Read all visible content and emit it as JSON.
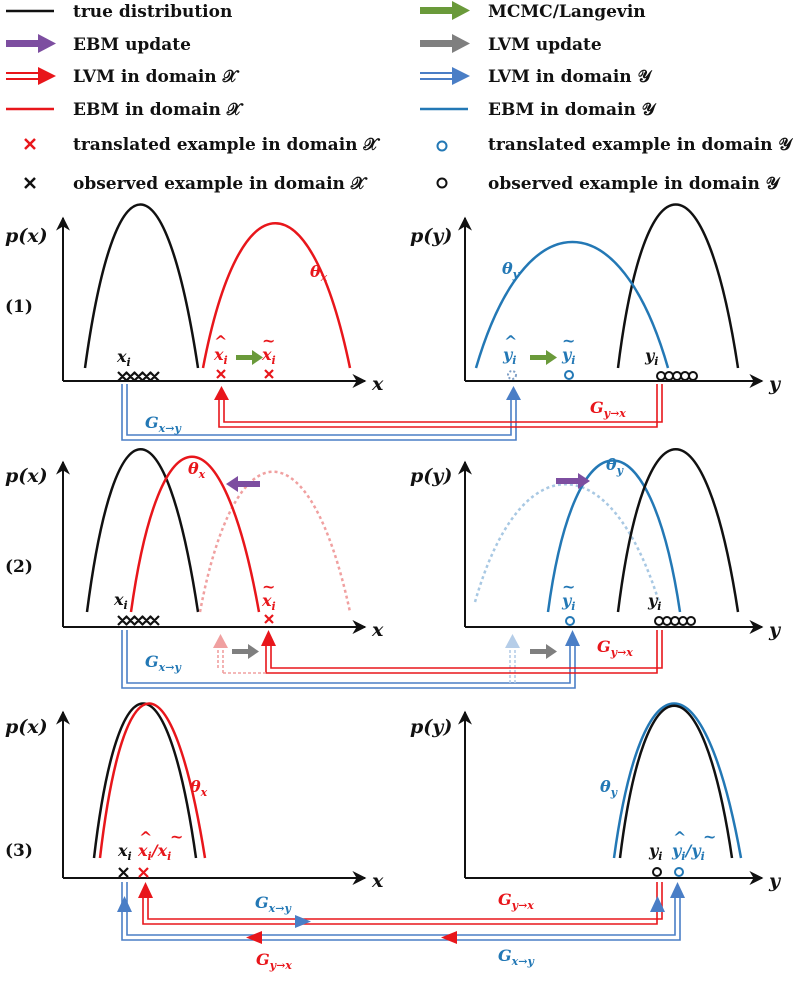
{
  "legend": {
    "true_distribution": "true distribution",
    "ebm_update": "EBM update",
    "lvm_x": "LVM in domain 𝒳",
    "ebm_x": "EBM in domain 𝒳",
    "translated_x": "translated example in domain 𝒳",
    "observed_x": "observed example in domain 𝒳",
    "mcmc": "MCMC/Langevin",
    "lvm_update": "LVM update",
    "lvm_y": "LVM in domain 𝒴",
    "ebm_y": "EBM in domain 𝒴",
    "translated_y": "translated example in domain 𝒴",
    "observed_y": "observed example in domain 𝒴"
  },
  "axes": {
    "px": "p(x)",
    "py": "p(y)",
    "x": "x",
    "y": "y"
  },
  "rows": {
    "r1": "(1)",
    "r2": "(2)",
    "r3": "(3)"
  },
  "labels": {
    "theta": "θ",
    "x_sub": "x",
    "y_sub": "y",
    "i_sub": "i",
    "G": "G",
    "g_xy": "x→y",
    "g_yx": "y→x",
    "slash": "/"
  },
  "colors": {
    "black": "#111111",
    "red": "#e8161b",
    "blue": "#2378b5",
    "green": "#6a9a3a",
    "purple": "#7d4ea0",
    "gray": "#7f7f7f"
  }
}
